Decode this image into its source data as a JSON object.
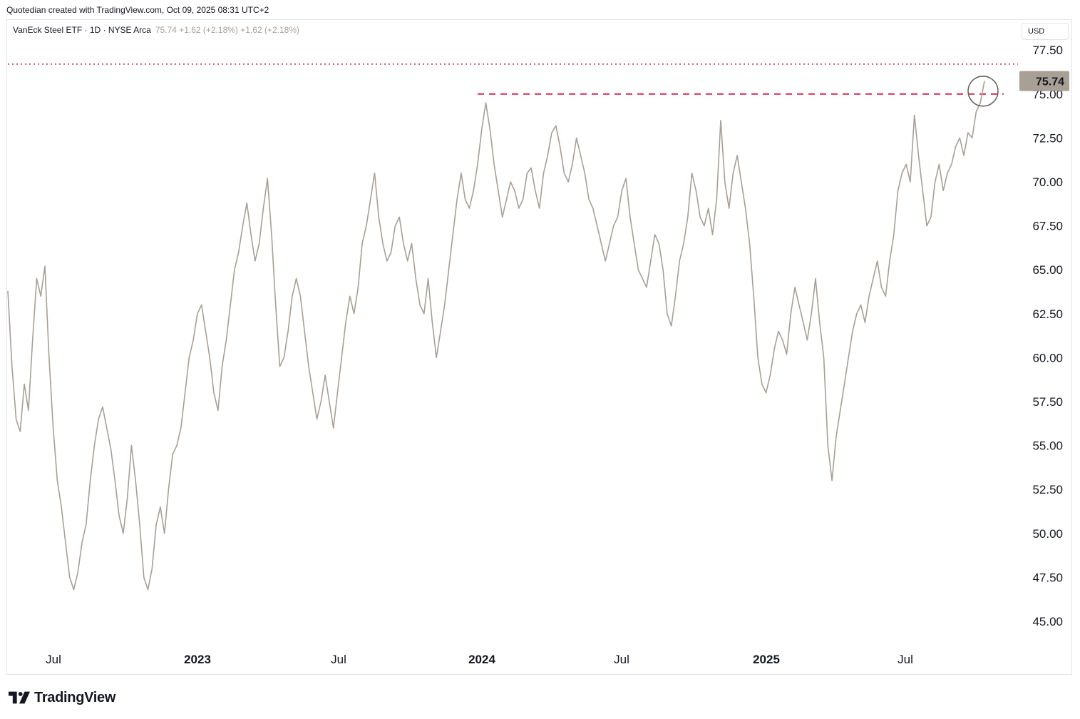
{
  "header": {
    "attribution": "Quotedian created with TradingView.com, Oct 09, 2025 08:31 UTC+2"
  },
  "legend": {
    "symbol": "VanEck Steel ETF · 1D · NYSE Arca",
    "values": "75.74 +1.62 (+2.18%) +1.62 (+2.18%)"
  },
  "currency_button": "USD",
  "price_label": "75.74",
  "footer": {
    "brand": "TradingView",
    "icon": "tradingview-logo-icon"
  },
  "colors": {
    "line": "#a89f95",
    "resistance": "#d6204e",
    "dotted": "#c2185b",
    "text": "#131722",
    "label_bg": "#a89f95"
  },
  "chart_data": {
    "type": "line",
    "y_axis_ticks": [
      "77.50",
      "75.00",
      "72.50",
      "70.00",
      "67.50",
      "65.00",
      "62.50",
      "60.00",
      "57.50",
      "55.00",
      "52.50",
      "50.00",
      "47.50",
      "45.00"
    ],
    "ylim": [
      44,
      78.5
    ],
    "x_axis_ticks": [
      {
        "label": "Jul",
        "bold": false
      },
      {
        "label": "2023",
        "bold": true
      },
      {
        "label": "Jul",
        "bold": false
      },
      {
        "label": "2024",
        "bold": true
      },
      {
        "label": "Jul",
        "bold": false
      },
      {
        "label": "2025",
        "bold": true
      },
      {
        "label": "Jul",
        "bold": false
      }
    ],
    "last_price": 75.74,
    "resistance_level": 75.0,
    "dotted_level": 76.7,
    "series": [
      {
        "values": [
          63.8,
          59.5,
          56.5,
          55.8,
          58.5,
          57.0,
          61.0,
          64.5,
          63.5,
          65.2,
          60.0,
          56.0,
          53.0,
          51.5,
          49.5,
          47.5,
          46.8,
          47.8,
          49.5,
          50.5,
          53.0,
          55.0,
          56.5,
          57.2,
          56.0,
          54.8,
          53.0,
          51.0,
          50.0,
          52.0,
          55.0,
          53.0,
          50.5,
          47.5,
          46.8,
          48.0,
          50.5,
          51.5,
          50.0,
          52.5,
          54.5,
          55.0,
          56.0,
          58.0,
          60.0,
          61.0,
          62.5,
          63.0,
          61.5,
          60.0,
          58.0,
          57.0,
          59.5,
          61.0,
          63.0,
          65.0,
          66.0,
          67.5,
          68.8,
          67.0,
          65.5,
          66.5,
          68.5,
          70.2,
          67.0,
          63.0,
          59.5,
          60.0,
          61.5,
          63.5,
          64.5,
          63.5,
          61.5,
          59.5,
          58.0,
          56.5,
          57.5,
          59.0,
          57.5,
          56.0,
          58.0,
          60.0,
          62.0,
          63.5,
          62.5,
          64.0,
          66.5,
          67.5,
          69.0,
          70.5,
          68.0,
          66.5,
          65.5,
          66.0,
          67.5,
          68.0,
          66.5,
          65.5,
          66.5,
          64.5,
          63.0,
          62.5,
          64.5,
          62.0,
          60.0,
          61.5,
          63.0,
          65.0,
          67.0,
          69.0,
          70.5,
          69.0,
          68.5,
          69.5,
          71.0,
          73.0,
          74.5,
          73.0,
          71.0,
          69.5,
          68.0,
          69.0,
          70.0,
          69.5,
          68.5,
          69.0,
          70.5,
          70.8,
          69.5,
          68.5,
          70.5,
          71.5,
          72.8,
          73.2,
          72.0,
          70.5,
          70.0,
          71.0,
          72.5,
          71.5,
          70.5,
          69.0,
          68.5,
          67.5,
          66.5,
          65.5,
          66.5,
          67.5,
          68.0,
          69.5,
          70.2,
          68.0,
          66.5,
          65.0,
          64.5,
          64.0,
          65.5,
          67.0,
          66.5,
          65.0,
          62.5,
          61.8,
          63.5,
          65.5,
          66.5,
          68.0,
          70.5,
          69.5,
          68.0,
          67.5,
          68.5,
          67.0,
          69.0,
          73.5,
          70.0,
          68.5,
          70.5,
          71.5,
          70.0,
          68.5,
          66.5,
          63.5,
          60.0,
          58.5,
          58.0,
          59.0,
          60.5,
          61.5,
          61.0,
          60.2,
          62.5,
          64.0,
          63.0,
          62.0,
          61.0,
          62.5,
          64.5,
          62.0,
          60.0,
          55.0,
          53.0,
          55.5,
          57.0,
          58.5,
          60.0,
          61.5,
          62.5,
          63.0,
          62.0,
          63.5,
          64.5,
          65.5,
          64.0,
          63.5,
          65.5,
          67.0,
          69.5,
          70.5,
          71.0,
          70.0,
          73.8,
          71.5,
          69.5,
          67.5,
          68.0,
          70.0,
          71.0,
          69.5,
          70.5,
          71.0,
          72.0,
          72.5,
          71.5,
          72.8,
          72.5,
          74.0,
          74.5,
          75.74
        ]
      }
    ]
  }
}
